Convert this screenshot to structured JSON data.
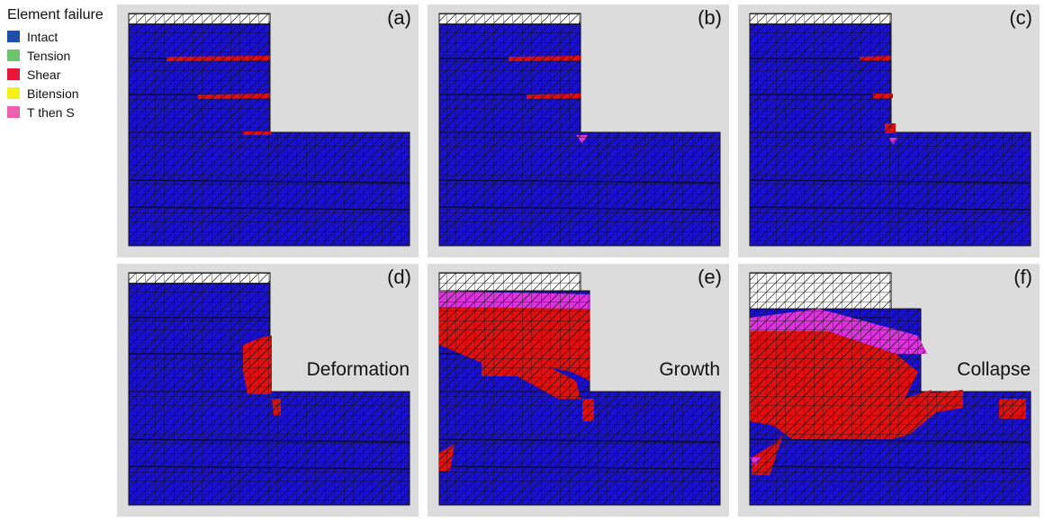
{
  "legend": {
    "title": "Element failure",
    "items": [
      {
        "label": "Intact",
        "color": "#1f4fa8"
      },
      {
        "label": "Tension",
        "color": "#6cc46c"
      },
      {
        "label": "Shear",
        "color": "#e8173a"
      },
      {
        "label": "Bitension",
        "color": "#f5ef1a"
      },
      {
        "label": "T then S",
        "color": "#ee5fae"
      }
    ]
  },
  "mesh_colors": {
    "intact": "#1a10d0",
    "shear": "#e01010",
    "t_then_s": "#dd33dd",
    "empty": "#ffffff"
  },
  "panels": [
    {
      "label": "(a)",
      "caption": ""
    },
    {
      "label": "(b)",
      "caption": ""
    },
    {
      "label": "(c)",
      "caption": ""
    },
    {
      "label": "(d)",
      "caption": "Deformation"
    },
    {
      "label": "(e)",
      "caption": "Growth"
    },
    {
      "label": "(f)",
      "caption": "Collapse"
    }
  ]
}
